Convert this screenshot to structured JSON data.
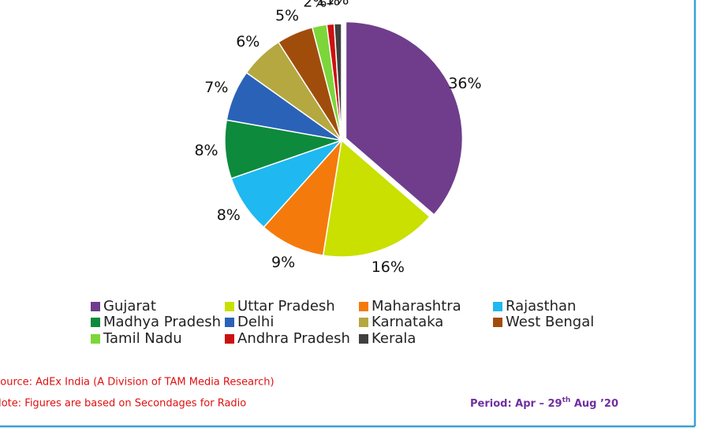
{
  "chart_data": {
    "type": "pie",
    "categories": [
      "Gujarat",
      "Uttar Pradesh",
      "Maharashtra",
      "Rajasthan",
      "Madhya Pradesh",
      "Delhi",
      "Karnataka",
      "West Bengal",
      "Tamil Nadu",
      "Andhra Pradesh",
      "Kerala"
    ],
    "values": [
      36,
      16,
      9,
      8,
      8,
      7,
      6,
      5,
      2,
      1,
      1
    ],
    "value_labels": [
      "36%",
      "16%",
      "9%",
      "8%",
      "8%",
      "7%",
      "6%",
      "5%",
      "2%",
      "1%",
      "1%"
    ],
    "colors": [
      "#6f3d8c",
      "#c9e000",
      "#f57a0c",
      "#1fb8f0",
      "#0e8a3c",
      "#2a62b8",
      "#b5a840",
      "#a04d0c",
      "#7cd63a",
      "#cc1010",
      "#404040"
    ],
    "legend": "bottom"
  },
  "footer": {
    "source": "Source: AdEx India (A Division of TAM Media Research)",
    "note": "Note: Figures are based on Secondages for Radio",
    "period": {
      "text": "Period: Apr – 29",
      "sup": "th",
      "rest": " Aug ’20"
    }
  }
}
